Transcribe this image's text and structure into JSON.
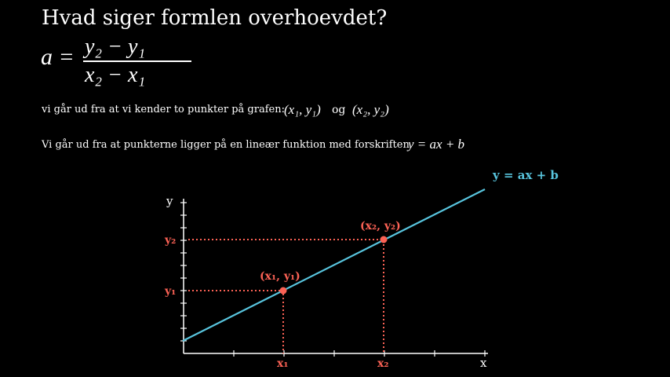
{
  "title": "Hvad siger formlen overhoevdet?",
  "formula": {
    "lhs": "a =",
    "numerator": "y₂ − y₁",
    "denominator": "x₂ − x₁"
  },
  "line1": {
    "text": "vi går ud fra at vi kender to punkter på grafen:",
    "point1": "(x₁, y₁)",
    "connector": "og",
    "point2": "(x₂, y₂)"
  },
  "line2": {
    "text": "Vi går ud fra at punkterne ligger på en lineær funktion med forskriften",
    "equation": "y = ax + b"
  },
  "graph": {
    "line_label": "y = ax + b",
    "x_axis_label": "x",
    "y_axis_label": "y",
    "point1_label": "(x₁, y₁)",
    "point2_label": "(x₂, y₂)",
    "x1_label": "x₁",
    "x2_label": "x₂",
    "y1_label": "y₁",
    "y2_label": "y₂",
    "colors": {
      "line": "#58C4DD",
      "points": "#FC6255",
      "axes": "#FFFFFF"
    }
  }
}
